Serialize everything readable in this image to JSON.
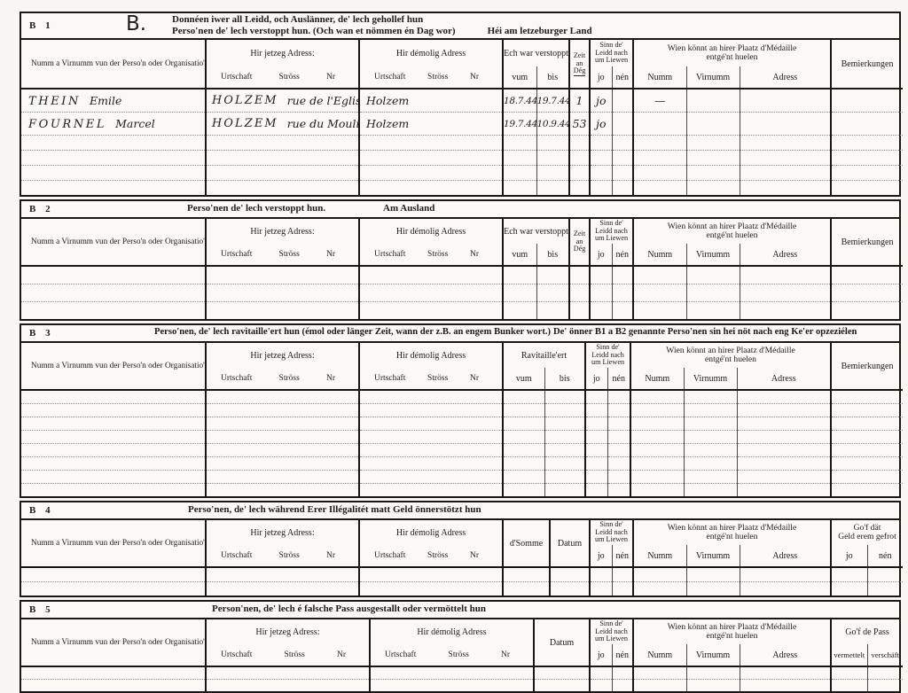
{
  "colors": {
    "ink": "#171717",
    "paper": "#f8f7f2",
    "handwriting": "#1f1f1f"
  },
  "shared": {
    "numm_col": "Numm a Virnumm vun der Perso'n oder Organisatio'n",
    "jetzeg": "Hir jetzeg Adress:",
    "demolig": "Hir démolig Adress",
    "urtschaft": "Urtschaft",
    "stross": "Ströss",
    "nr": "Nr",
    "verstoppt": "Ech war verstoppt",
    "vum": "vum",
    "bis": "bis",
    "zeit_l1": "Zeit",
    "zeit_l2": "an",
    "zeit_l3": "Dég",
    "sinn_l1": "Sinn de'",
    "sinn_l2": "Leidd nach",
    "sinn_l3": "um Liewen",
    "jo": "jo",
    "nen": "nén",
    "wien_l1": "Wien könnt an hirer Plaatz d'Médaille",
    "wien_l2": "entgé'nt huelen",
    "w_numm": "Numm",
    "w_virnumm": "Virnumm",
    "w_adress": "Adress",
    "bemierkungen": "Bemierkungen",
    "datum": "Datum"
  },
  "b1": {
    "label": "B 1",
    "big_letter": "B.",
    "title_l1": "Donnéen iwer all Leidd, och Auslänner, de' lech gehollef hun",
    "title_l2": "Perso'nen de' lech verstoppt hun. (Och wan et nömmen én Dag wor)",
    "title_right": "Héi am letzeburger Land",
    "rows": [
      {
        "surname": "THEIN",
        "given": "Emile",
        "j_urtschaft": "HOLZEM",
        "j_stross": "rue de l'Eglise",
        "j_nr": "7.",
        "d_urtschaft": "Holzem",
        "vum": "18.7.44.",
        "bis": "19.7.44.",
        "zeit": "1",
        "jo": "jo",
        "w_numm": "—"
      },
      {
        "surname": "FOURNEL",
        "given": "Marcel",
        "j_urtschaft": "HOLZEM",
        "j_stross": "rue du Moulin",
        "j_nr": "14",
        "d_urtschaft": "Holzem",
        "vum": "19.7.44.",
        "bis": "10.9.44.",
        "zeit": "53",
        "jo": "jo",
        "w_numm": ""
      }
    ]
  },
  "b2": {
    "label": "B 2",
    "title": "Perso'nen de' lech verstoppt hun.",
    "title_right": "Am Ausland"
  },
  "b3": {
    "label": "B 3",
    "title_l1": "Perso'nen, de' lech ravitaille'ert hun (émol oder länger Zeit, wann der z.B. an engem Bunker wort.)",
    "title_l2": "De' önner B1 a B2 genannte Perso'nen sin hei nöt nach eng Ke'er opzeziélen",
    "ravitailleert": "Ravitaille'ert"
  },
  "b4": {
    "label": "B 4",
    "title": "Perso'nen, de' lech während Erer Illégalitét matt Geld önnerstötzt hun",
    "dsomme": "d'Somme",
    "gof_l1": "Go'f dät",
    "gof_l2": "Geld erem gefrot"
  },
  "b5": {
    "label": "B 5",
    "title": "Person'nen, de' lech é falsche Pass ausgestallt oder vermöttelt hun",
    "gof_pass": "Go'f de Pass",
    "vermettelt": "vermettelt",
    "verschaft": "verschäft"
  }
}
